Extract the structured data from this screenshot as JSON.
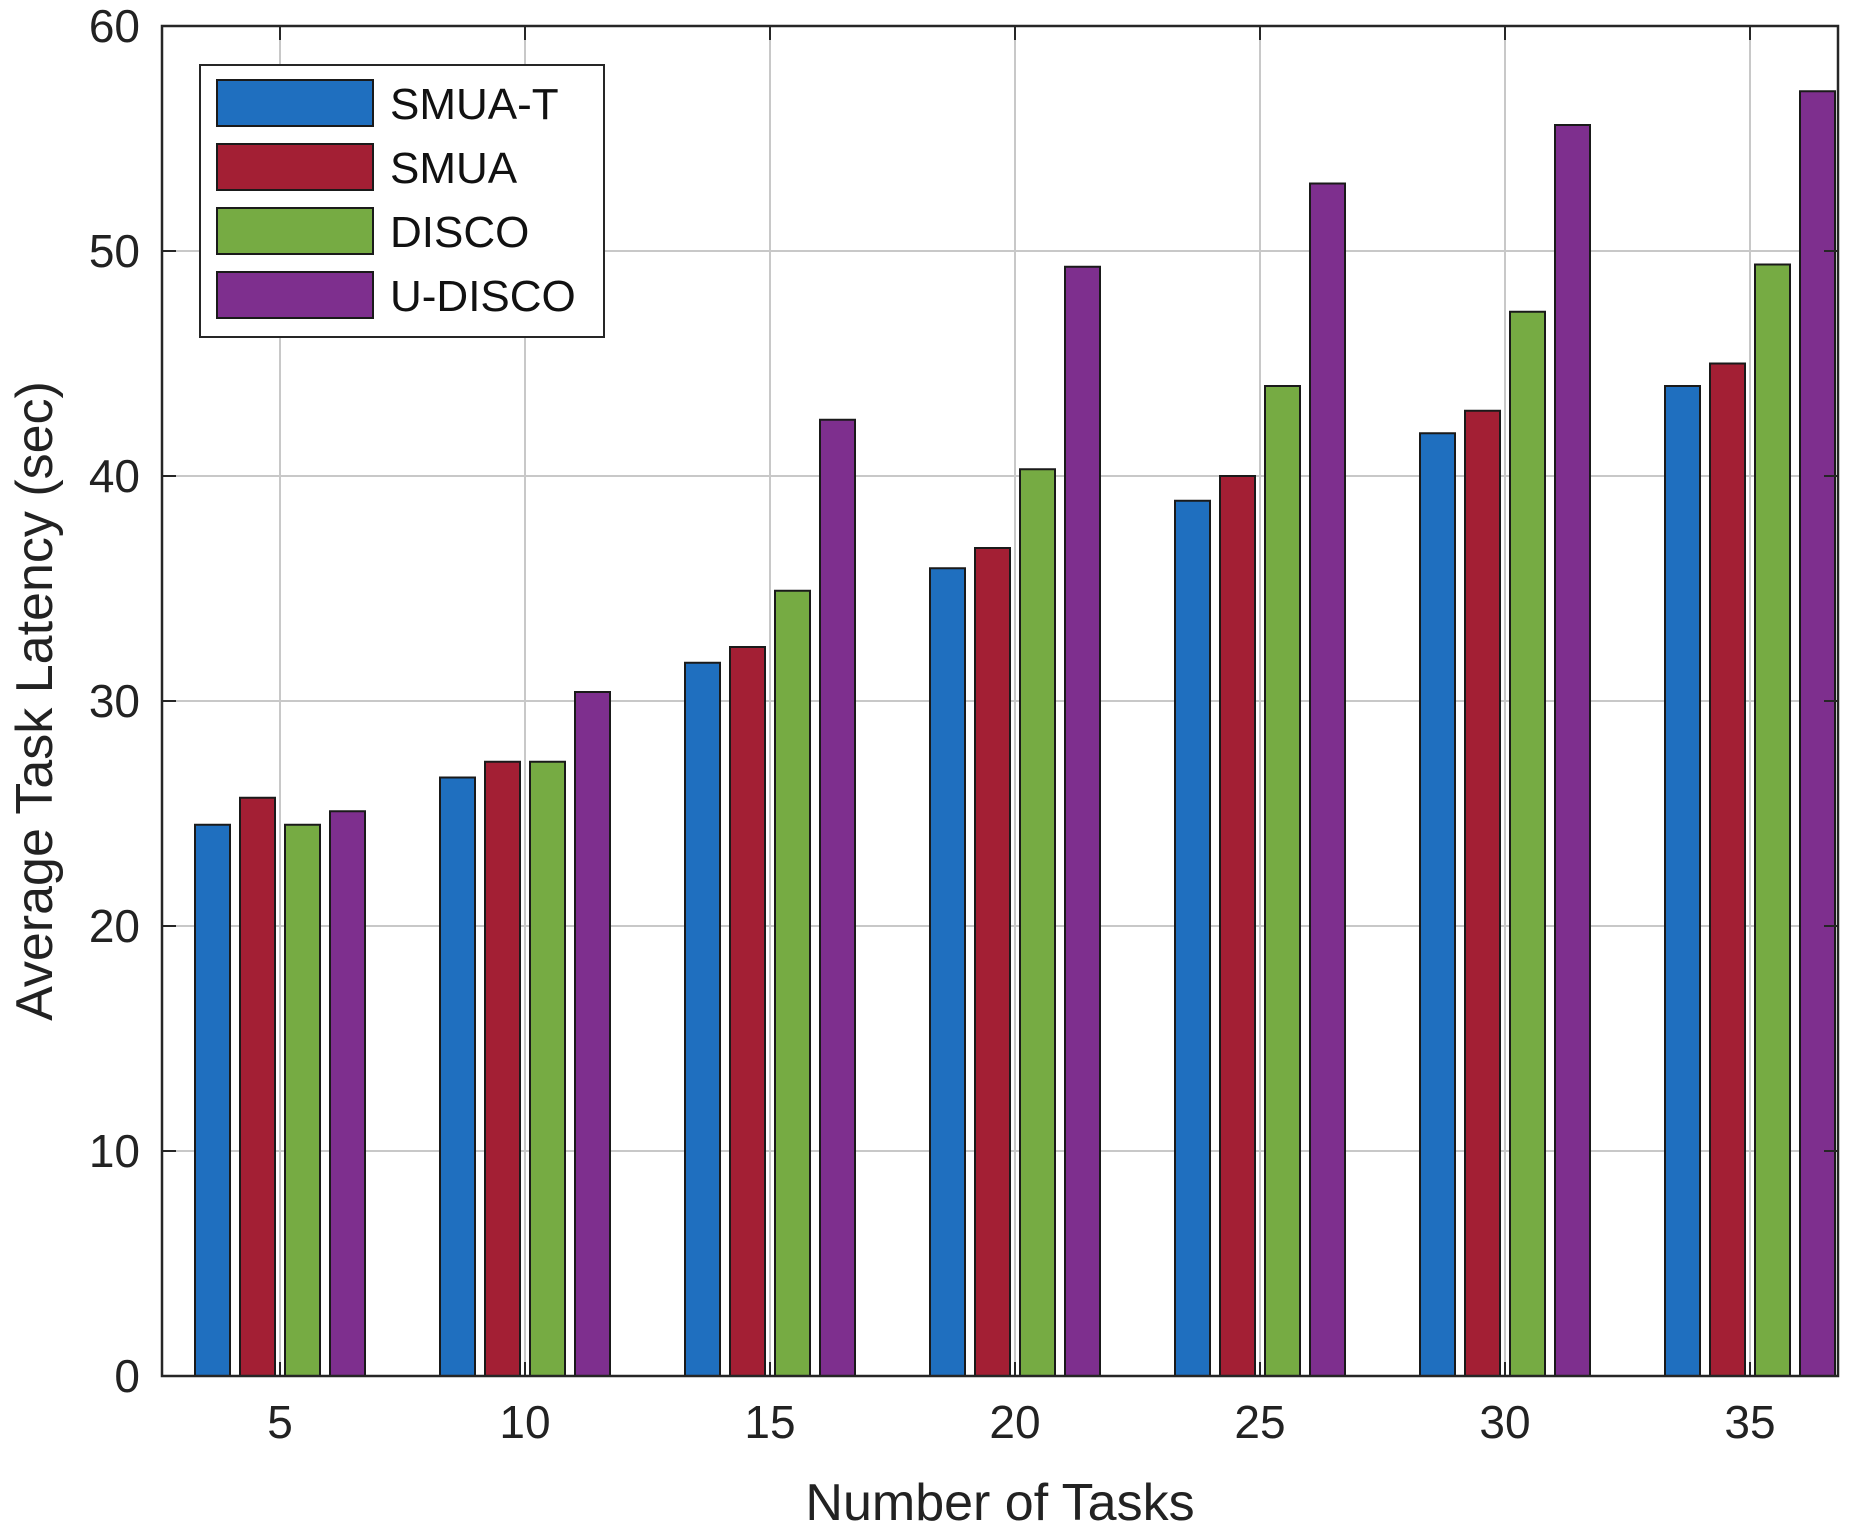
{
  "chart_data": {
    "type": "bar",
    "title": "",
    "xlabel": "Number of Tasks",
    "ylabel": "Average Task Latency (sec)",
    "categories": [
      "5",
      "10",
      "15",
      "20",
      "25",
      "30",
      "35"
    ],
    "ylim": [
      0,
      60
    ],
    "yticks": [
      0,
      10,
      20,
      30,
      40,
      50,
      60
    ],
    "grid": true,
    "legend_position": "top-left",
    "series": [
      {
        "name": "SMUA-T",
        "color": "#1f6fbf",
        "values": [
          24.5,
          26.6,
          31.7,
          35.9,
          38.9,
          41.9,
          44.0
        ]
      },
      {
        "name": "SMUA",
        "color": "#a31f34",
        "values": [
          25.7,
          27.3,
          32.4,
          36.8,
          40.0,
          42.9,
          45.0
        ]
      },
      {
        "name": "DISCO",
        "color": "#76ab43",
        "values": [
          24.5,
          27.3,
          34.9,
          40.3,
          44.0,
          47.3,
          49.4
        ]
      },
      {
        "name": "U-DISCO",
        "color": "#7e2f8e",
        "values": [
          25.1,
          30.4,
          42.5,
          49.3,
          53.0,
          55.6,
          57.1
        ]
      }
    ]
  }
}
